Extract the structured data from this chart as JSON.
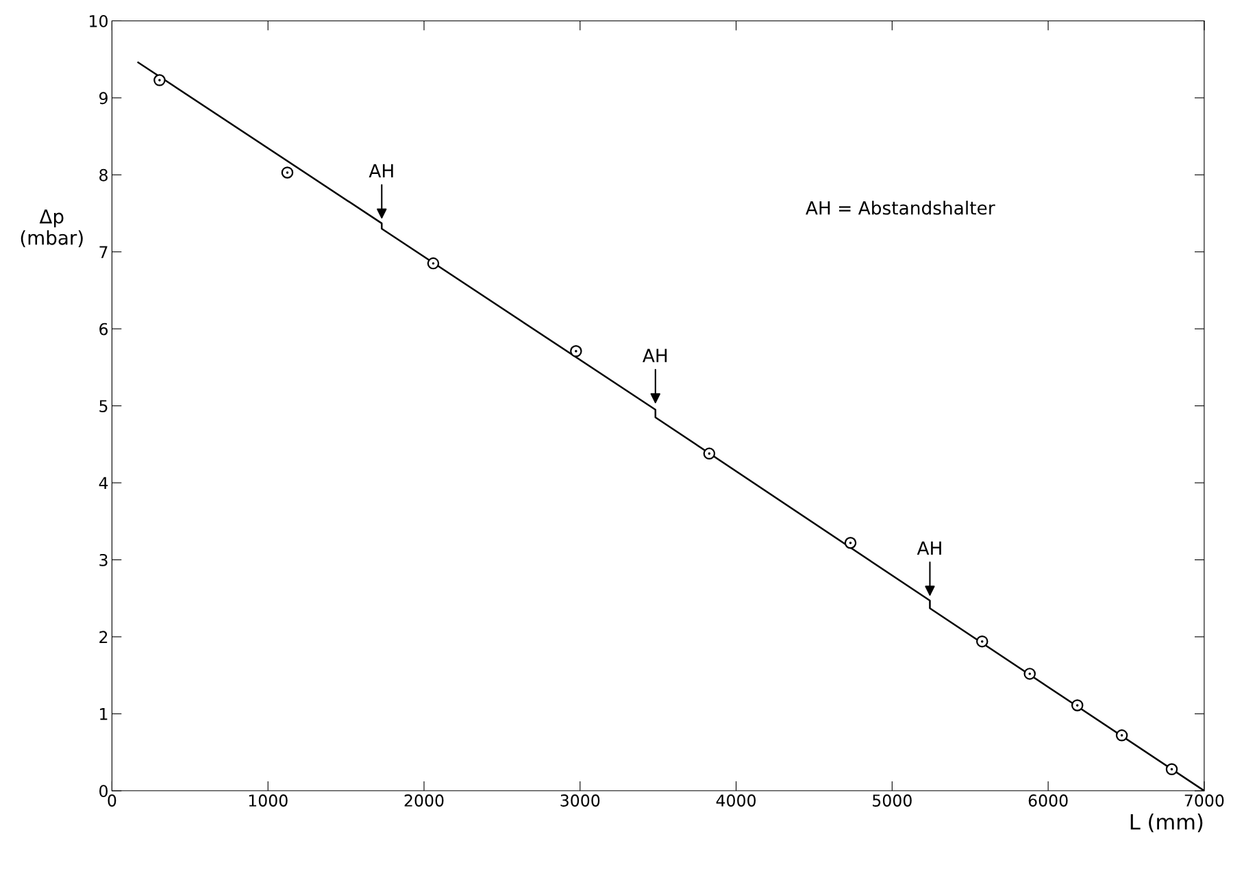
{
  "chart_data": {
    "type": "scatter",
    "xlabel": "L (mm)",
    "ylabel": "Δp\n(mbar)",
    "xlim": [
      0,
      7000
    ],
    "ylim": [
      0,
      10
    ],
    "xticks": [
      0,
      1000,
      2000,
      3000,
      4000,
      5000,
      6000,
      7000
    ],
    "yticks": [
      0,
      1,
      2,
      3,
      4,
      5,
      6,
      7,
      8,
      9,
      10
    ],
    "grid": false,
    "legend": false,
    "series": [
      {
        "color": "#000000",
        "marker": "circle",
        "x": [
          305,
          1124,
          2059,
          2974,
          3828,
          4733,
          5577,
          5882,
          6187,
          6472,
          6792
        ],
        "values": [
          9.23,
          8.03,
          6.85,
          5.71,
          4.38,
          3.22,
          1.94,
          1.52,
          1.11,
          0.72,
          0.28
        ]
      },
      {
        "type": "line",
        "color": "#000000",
        "line_style": "solid",
        "marker": "none",
        "x": [
          168,
          1729,
          1729,
          3483,
          3483,
          5242,
          5242,
          7000
        ],
        "values": [
          9.46,
          7.37,
          7.3,
          4.95,
          4.85,
          2.47,
          2.37,
          0
        ]
      }
    ],
    "annotations": [
      {
        "text": "AH",
        "x": 1729,
        "y": 7.4
      },
      {
        "text": "AH",
        "x": 3483,
        "y": 5.0
      },
      {
        "text": "AH",
        "x": 5242,
        "y": 2.5
      },
      "AH = Abstandshalter"
    ]
  }
}
